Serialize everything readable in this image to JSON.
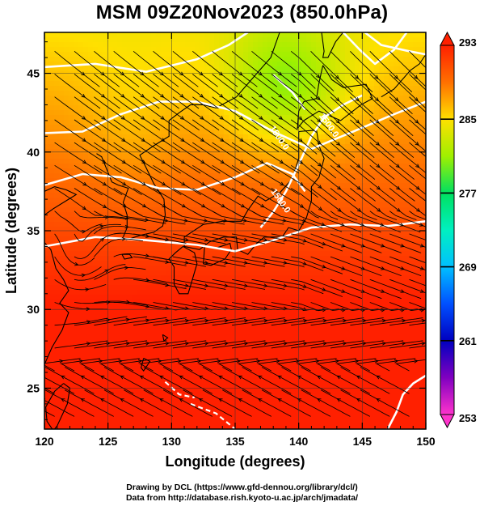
{
  "title": "MSM 09Z20Nov2023 (850.0hPa)",
  "credits": {
    "line1": "Drawing by DCL (https://www.gfd-dennou.org/library/dcl/)",
    "line2": "Data from http://database.rish.kyoto-u.ac.jp/arch/jmadata/"
  },
  "chart_data": {
    "type": "heatmap",
    "title": "MSM 09Z20Nov2023 (850.0hPa)",
    "xlabel": "Longitude (degrees)",
    "ylabel": "Latitude (degrees)",
    "xlim": [
      120,
      150
    ],
    "ylim": [
      22.4,
      47.6
    ],
    "x_ticks": [
      120,
      125,
      130,
      135,
      140,
      145,
      150
    ],
    "y_ticks": [
      25,
      30,
      35,
      40,
      45
    ],
    "grid": true,
    "colorbar": {
      "min": 253,
      "max": 293,
      "ticks": [
        253,
        261,
        269,
        277,
        285,
        293
      ],
      "colormap": [
        "#ff33cc",
        "#8000c0",
        "#0000c0",
        "#0050ff",
        "#00c0ff",
        "#00f0c0",
        "#00e060",
        "#a0f000",
        "#ffe000",
        "#ff7000",
        "#ff2000"
      ]
    },
    "contour_labels": [
      {
        "text": "1500.0",
        "lon": 142.2,
        "lat": 41.6
      },
      {
        "text": "1500.0",
        "lon": 138.3,
        "lat": 40.8
      },
      {
        "text": "1500.0",
        "lon": 138.4,
        "lat": 36.8
      }
    ]
  }
}
